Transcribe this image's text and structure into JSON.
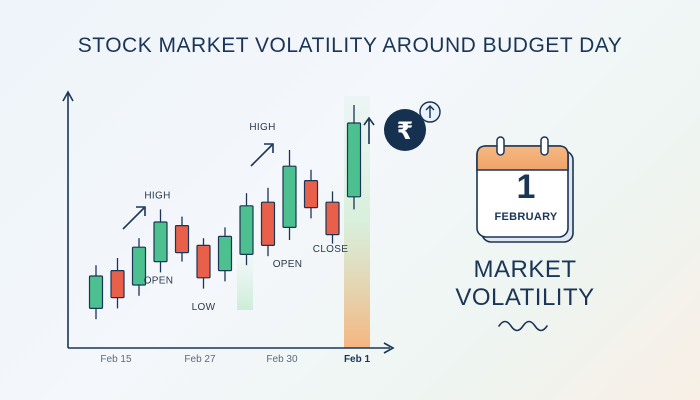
{
  "title": "STOCK MARKET VOLATILITY AROUND BUDGET DAY",
  "calendar": {
    "day": "1",
    "month": "FEBRUARY"
  },
  "caption": {
    "line1": "MARKET",
    "line2": "VOLATILITY"
  },
  "icons": {
    "currency": "rupee-icon",
    "arrow": "arrow-up-icon",
    "calendar": "calendar-icon",
    "wave": "wave-icon"
  },
  "colors": {
    "up": "#4cc08f",
    "down": "#e8604a",
    "axis": "#1b3556",
    "highlight": "#f5b27a"
  },
  "chart_data": {
    "type": "candlestick",
    "x_ticks": [
      "Feb 15",
      "Feb 27",
      "Feb 30",
      "Feb 1"
    ],
    "highlighted_tick": "Feb 1",
    "candles": [
      {
        "open": 2.2,
        "close": 4.0,
        "high": 4.6,
        "low": 1.6,
        "dir": "up"
      },
      {
        "open": 4.3,
        "close": 2.8,
        "high": 5.0,
        "low": 2.2,
        "dir": "down"
      },
      {
        "open": 3.5,
        "close": 5.6,
        "high": 6.1,
        "low": 2.9,
        "dir": "up"
      },
      {
        "open": 4.8,
        "close": 7.0,
        "high": 7.7,
        "low": 4.2,
        "dir": "up"
      },
      {
        "open": 6.8,
        "close": 5.3,
        "high": 7.3,
        "low": 4.8,
        "dir": "down"
      },
      {
        "open": 5.7,
        "close": 3.9,
        "high": 6.1,
        "low": 3.3,
        "dir": "down"
      },
      {
        "open": 4.3,
        "close": 6.2,
        "high": 6.7,
        "low": 3.7,
        "dir": "up"
      },
      {
        "open": 5.2,
        "close": 7.9,
        "high": 8.6,
        "low": 4.6,
        "dir": "up"
      },
      {
        "open": 8.1,
        "close": 5.7,
        "high": 8.9,
        "low": 5.1,
        "dir": "down"
      },
      {
        "open": 6.7,
        "close": 10.1,
        "high": 11.0,
        "low": 6.0,
        "dir": "up"
      },
      {
        "open": 9.3,
        "close": 7.8,
        "high": 9.9,
        "low": 7.2,
        "dir": "down"
      },
      {
        "open": 8.1,
        "close": 6.3,
        "high": 8.7,
        "low": 5.8,
        "dir": "down"
      },
      {
        "open": 8.4,
        "close": 12.5,
        "high": 13.5,
        "low": 7.7,
        "dir": "up"
      }
    ],
    "annotations": [
      {
        "text": "HIGH",
        "candle": 3,
        "pos": "above"
      },
      {
        "text": "OPEN",
        "candle": 3,
        "pos": "below"
      },
      {
        "text": "LOW",
        "candle": 5,
        "pos": "below"
      },
      {
        "text": "HIGH",
        "candle": 9,
        "pos": "above"
      },
      {
        "text": "OPEN",
        "candle": 9,
        "pos": "below"
      },
      {
        "text": "CLOSE",
        "candle": 11,
        "pos": "below"
      }
    ],
    "ylim": [
      0,
      14
    ],
    "xlabel": "",
    "ylabel": ""
  }
}
